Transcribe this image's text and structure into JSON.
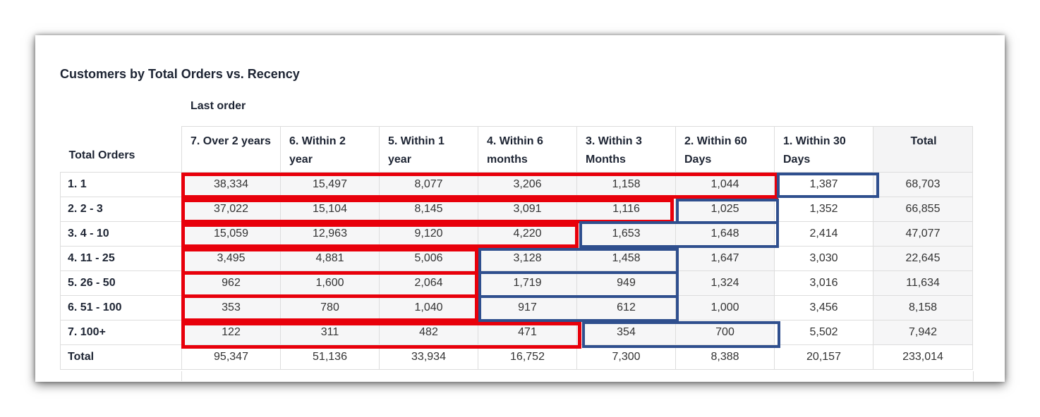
{
  "title": "Customers by Total Orders vs. Recency",
  "column_group_label": "Last order",
  "row_header_label": "Total Orders",
  "columns": [
    "7. Over 2 years",
    "6. Within 2 year",
    "5. Within 1 year",
    "4. Within 6 months",
    "3. Within 3 Months",
    "2. Within 60 Days",
    "1. Within 30 Days",
    "Total"
  ],
  "rows": [
    {
      "label": "1. 1",
      "values": [
        "38,334",
        "15,497",
        "8,077",
        "3,206",
        "1,158",
        "1,044",
        "1,387",
        "68,703"
      ]
    },
    {
      "label": "2. 2 - 3",
      "values": [
        "37,022",
        "15,104",
        "8,145",
        "3,091",
        "1,116",
        "1,025",
        "1,352",
        "66,855"
      ]
    },
    {
      "label": "3. 4 - 10",
      "values": [
        "15,059",
        "12,963",
        "9,120",
        "4,220",
        "1,653",
        "1,648",
        "2,414",
        "47,077"
      ]
    },
    {
      "label": "4. 11 - 25",
      "values": [
        "3,495",
        "4,881",
        "5,006",
        "3,128",
        "1,458",
        "1,647",
        "3,030",
        "22,645"
      ]
    },
    {
      "label": "5. 26 - 50",
      "values": [
        "962",
        "1,600",
        "2,064",
        "1,719",
        "949",
        "1,324",
        "3,016",
        "11,634"
      ]
    },
    {
      "label": "6. 51 - 100",
      "values": [
        "353",
        "780",
        "1,040",
        "917",
        "612",
        "1,000",
        "3,456",
        "8,158"
      ]
    },
    {
      "label": "7. 100+",
      "values": [
        "122",
        "311",
        "482",
        "471",
        "354",
        "700",
        "5,502",
        "7,942"
      ]
    },
    {
      "label": "Total",
      "values": [
        "95,347",
        "51,136",
        "33,934",
        "16,752",
        "7,300",
        "8,388",
        "20,157",
        "233,014"
      ]
    }
  ],
  "colors": {
    "highlight_red": "#e8000b",
    "highlight_blue": "#2f4f8e"
  }
}
